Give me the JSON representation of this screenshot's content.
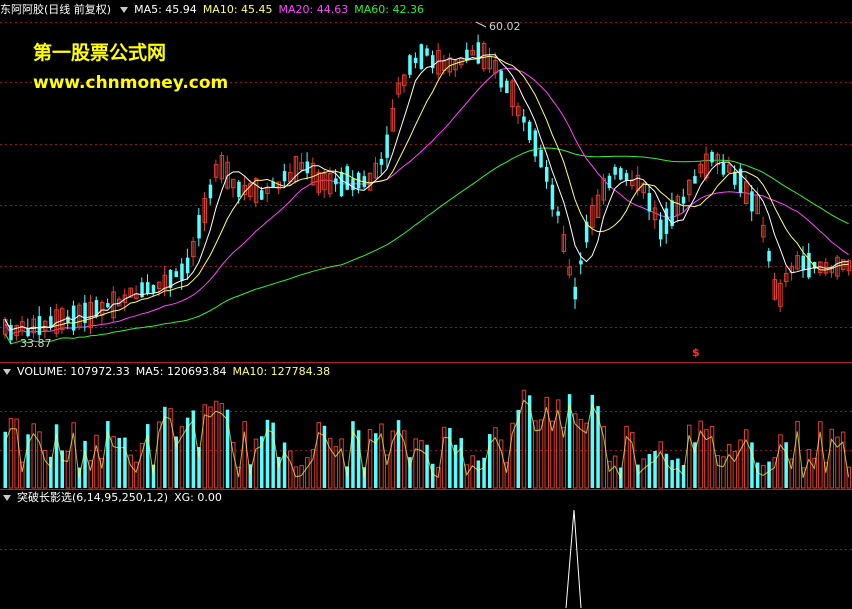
{
  "main_panel": {
    "stock_title": "东阿阿胶(日线 前复权)",
    "ma5": {
      "label": "MA5: 45.94",
      "color": "#ffffff"
    },
    "ma10": {
      "label": "MA10: 45.45",
      "color": "#ffff66"
    },
    "ma20": {
      "label": "MA20: 44.63",
      "color": "#ff44ff"
    },
    "ma60": {
      "label": "MA60: 42.36",
      "color": "#33ee33"
    },
    "high_marker": "60.02",
    "low_marker": "33.87",
    "signal_marker": "$"
  },
  "watermark": {
    "line1": "第一股票公式网",
    "line2": "www.chnmoney.com"
  },
  "volume_panel": {
    "volume_label": "VOLUME: 107972.33",
    "ma5_label": "MA5: 120693.84",
    "ma10_label": "MA10: 127784.38"
  },
  "indicator_panel": {
    "formula_label": "突破长影选(6,14,95,250,1,2)",
    "xg_label": "XG: 0.00"
  },
  "chart_data": {
    "type": "candlestick",
    "price_range": [
      33.87,
      60.02
    ],
    "up_color": "#e03c2c",
    "down_color": "#54ffff",
    "grid": "horizontal dashed"
  }
}
